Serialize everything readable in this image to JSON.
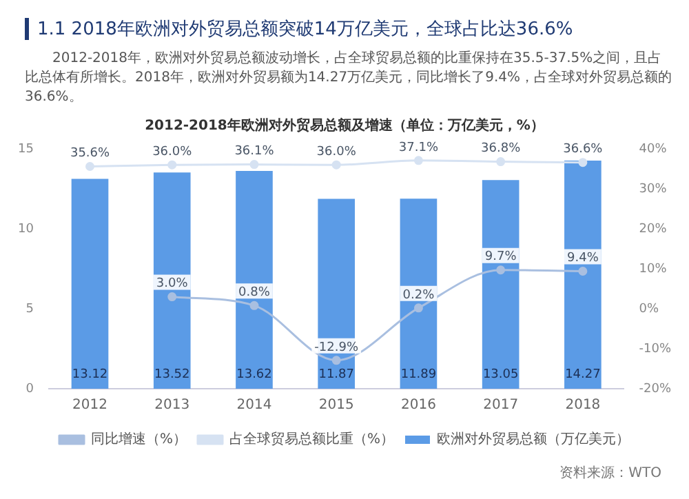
{
  "chart_data": {
    "type": "bar",
    "title": "1.1 2018年欧洲对外贸易总额突破14万亿美元，全球占比达36.6%",
    "subtitle": "2012-2018年，欧洲对外贸易总额波动增长，占全球贸易总额的比重保持在35.5-37.5%之间，且占比总体有所增长。2018年，欧洲对外贸易额为14.27万亿美元，同比增长了9.4%，占全球对外贸易总额的36.6%。",
    "annotations": [
      "2012-2018年欧洲对外贸易总额及增速（单位：万亿美元，%）",
      "资料来源：WTO"
    ],
    "categories": [
      "2012",
      "2013",
      "2014",
      "2015",
      "2016",
      "2017",
      "2018"
    ],
    "series": [
      {
        "name": "欧洲对外贸易总额（万亿美元）",
        "color": "#5b9be6",
        "values": [
          13.12,
          13.52,
          13.62,
          11.87,
          11.89,
          13.05,
          14.27
        ],
        "value_labels": [
          "13.12",
          "13.52",
          "13.62",
          "11.87",
          "11.89",
          "13.05",
          "14.27"
        ]
      },
      {
        "name": "同比增速（%）",
        "type": "line",
        "axis": "y2",
        "color": "#a9bfe0",
        "values": [
          null,
          3.0,
          0.8,
          -12.9,
          0.2,
          9.7,
          9.4
        ],
        "value_labels": [
          null,
          "3.0%",
          "0.8%",
          "-12.9%",
          "0.2%",
          "9.7%",
          "9.4%"
        ]
      },
      {
        "name": "占全球贸易总额比重（%）",
        "type": "line",
        "axis": "y2",
        "color": "#d6e2f2",
        "values": [
          35.6,
          36.0,
          36.1,
          36.0,
          37.1,
          36.8,
          36.6
        ],
        "value_labels": [
          "35.6%",
          "36.0%",
          "36.1%",
          "36.0%",
          "37.1%",
          "36.8%",
          "36.6%"
        ]
      }
    ],
    "ylim": [
      0,
      15
    ],
    "yticks": [
      0,
      5,
      10,
      15
    ],
    "y2lim": [
      -20,
      40
    ],
    "y2ticks": [
      {
        "value": -20,
        "label": "-20%"
      },
      {
        "value": -10,
        "label": "-10%"
      },
      {
        "value": 0,
        "label": "0%"
      },
      {
        "value": 10,
        "label": "10%"
      },
      {
        "value": 20,
        "label": "20%"
      },
      {
        "value": 30,
        "label": "30%"
      },
      {
        "value": 40,
        "label": "40%"
      }
    ],
    "grid": false,
    "legend": "bottom",
    "marker": "circle",
    "line_style": "solid"
  }
}
